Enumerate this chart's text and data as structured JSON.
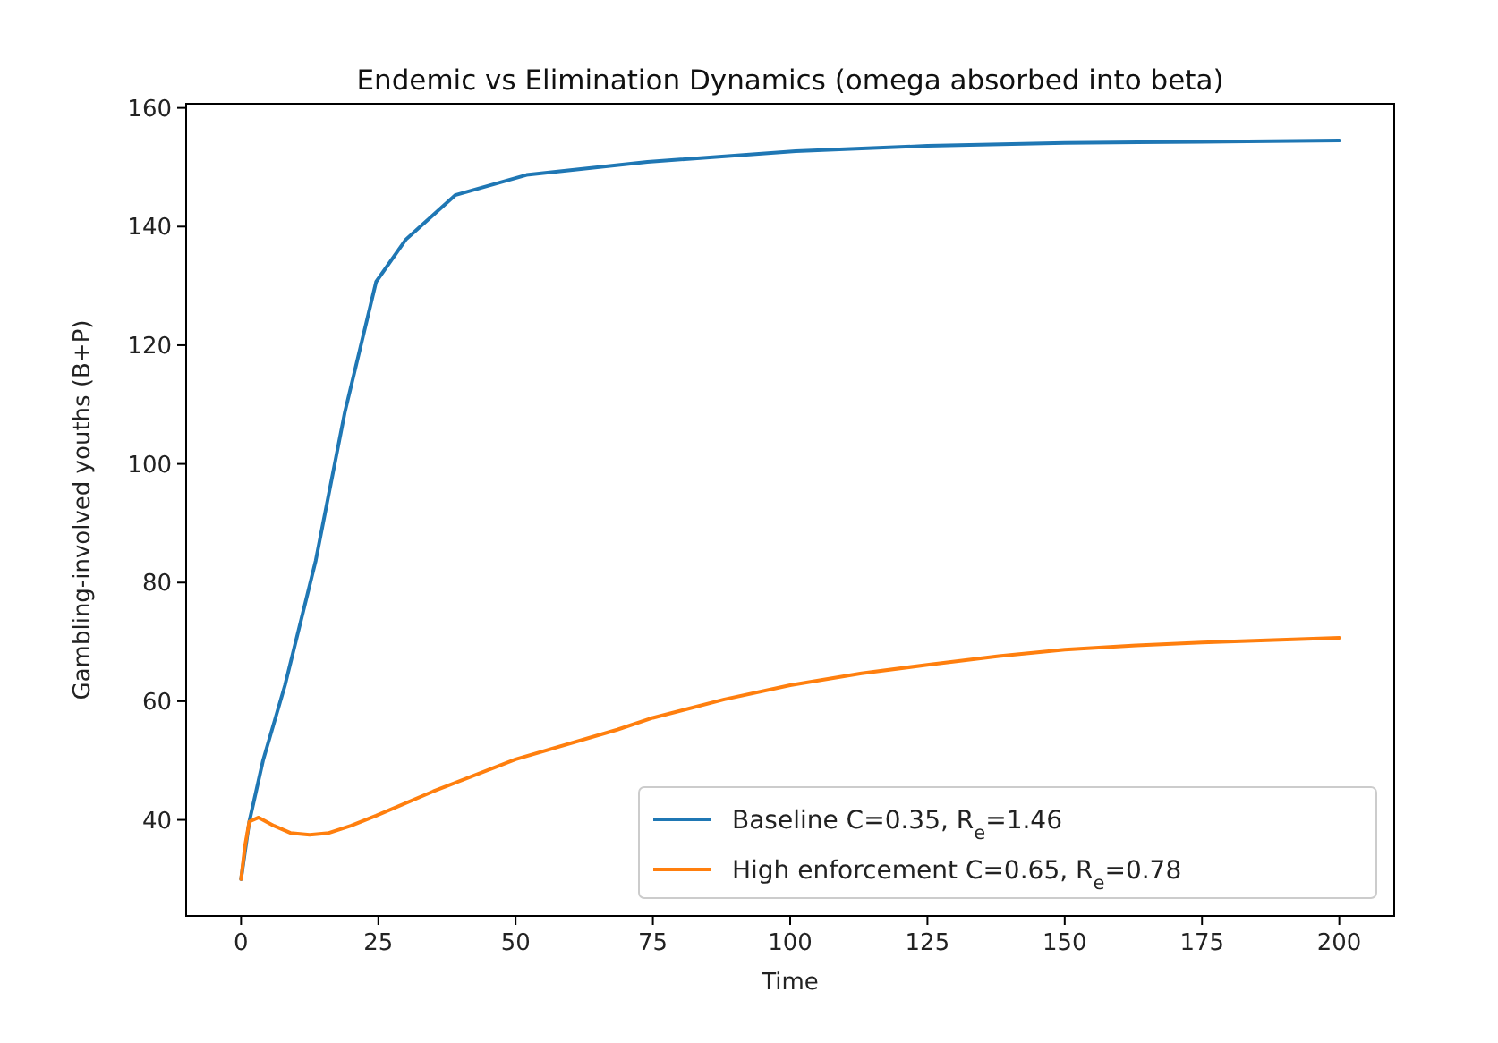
{
  "chart_data": {
    "type": "line",
    "title": "Endemic vs Elimination Dynamics (omega absorbed into beta)",
    "xlabel": "Time",
    "ylabel": "Gambling-involved youths (B+P)",
    "xlim": [
      -10,
      210
    ],
    "ylim": [
      23.8,
      160.7
    ],
    "xticks": [
      0,
      25,
      50,
      75,
      100,
      125,
      150,
      175,
      200
    ],
    "yticks": [
      40,
      60,
      80,
      100,
      120,
      140,
      160
    ],
    "grid": false,
    "legend": "bottom right",
    "line_style": "solid",
    "marker": "none",
    "series": [
      {
        "name": "Baseline C=0.35, R$_{e}$=1.46",
        "color": "#1f77b4",
        "x": [
          0,
          1.5,
          4,
          8,
          13.6,
          18.9,
          24.6,
          30,
          39,
          52,
          74,
          101,
          125,
          150,
          175,
          200
        ],
        "values": [
          30,
          39.7,
          50,
          62.7,
          83.7,
          108.7,
          130.7,
          137.8,
          145.3,
          148.7,
          150.9,
          152.7,
          153.6,
          154.1,
          154.3,
          154.5
        ]
      },
      {
        "name": "High enforcement C=0.65, R$_{e}$=0.78",
        "color": "#ff7f0e",
        "x": [
          0,
          0.7,
          1.5,
          3.2,
          6,
          9,
          12.5,
          16,
          20,
          24.6,
          35,
          50,
          68.5,
          75,
          88,
          100,
          113,
          125.6,
          138,
          150,
          163,
          175,
          188,
          200
        ],
        "values": [
          30,
          35.5,
          39.7,
          40.4,
          39,
          37.8,
          37.5,
          37.8,
          39,
          40.7,
          44.8,
          50.2,
          55.2,
          57.2,
          60.3,
          62.7,
          64.7,
          66.2,
          67.6,
          68.7,
          69.4,
          69.9,
          70.3,
          70.7
        ]
      }
    ]
  }
}
